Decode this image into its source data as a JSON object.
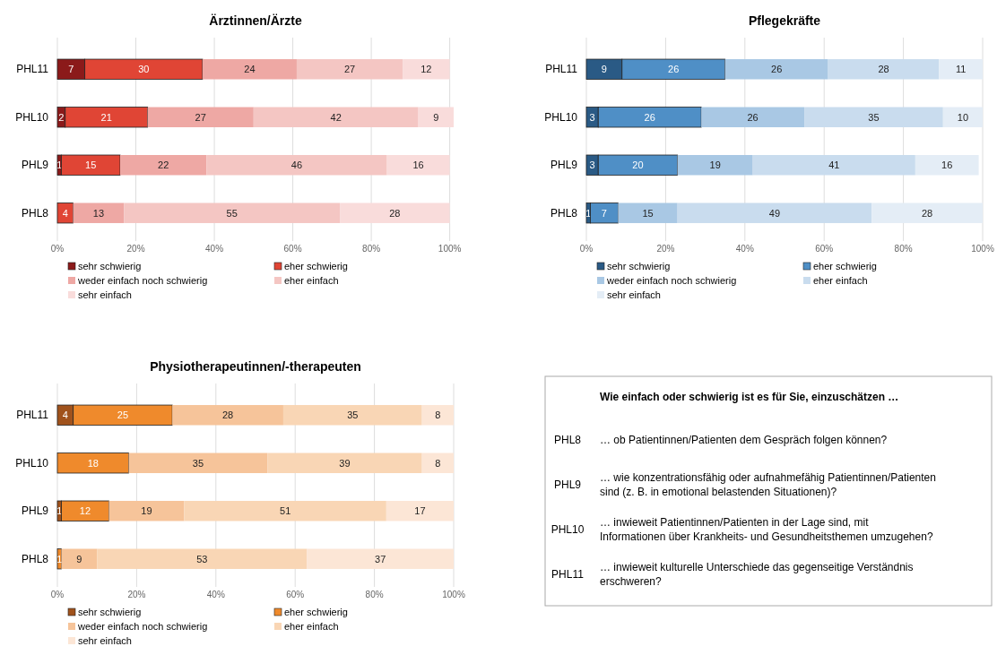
{
  "chart_data": [
    {
      "type": "bar",
      "title": "Ärztinnen/Ärzte",
      "orientation": "horizontal",
      "stacked": true,
      "categories": [
        "PHL11",
        "PHL10",
        "PHL9",
        "PHL8"
      ],
      "xlim": [
        0,
        101
      ],
      "xticks": [
        {
          "value": 0,
          "label": "0%"
        },
        {
          "value": 20,
          "label": "20%"
        },
        {
          "value": 40,
          "label": "40%"
        },
        {
          "value": 60,
          "label": "60%"
        },
        {
          "value": 80,
          "label": "80%"
        },
        {
          "value": 100,
          "label": "100%"
        }
      ],
      "grid": "x",
      "legend": "bottom",
      "series": [
        {
          "name": "sehr schwierig",
          "color": "#8b1a1a",
          "values": [
            7,
            2,
            1,
            0
          ],
          "value_labels": [
            "7",
            "2",
            "1",
            null
          ]
        },
        {
          "name": "eher schwierig",
          "color": "#e04535",
          "values": [
            30,
            21,
            15,
            4
          ],
          "value_labels": [
            "30",
            "21",
            "15",
            "4"
          ]
        },
        {
          "name": "weder einfach noch schwierig",
          "color": "#eea8a4",
          "values": [
            24,
            27,
            22,
            13
          ],
          "value_labels": [
            "24",
            "27",
            "22",
            "13"
          ]
        },
        {
          "name": "eher einfach",
          "color": "#f4c6c3",
          "values": [
            27,
            42,
            46,
            55
          ],
          "value_labels": [
            "27",
            "42",
            "46",
            "55"
          ]
        },
        {
          "name": "sehr einfach",
          "color": "#f9dcdb",
          "values": [
            12,
            9,
            16,
            28
          ],
          "value_labels": [
            "12",
            "9",
            "16",
            "28"
          ]
        }
      ]
    },
    {
      "type": "bar",
      "title": "Pflegekräfte",
      "orientation": "horizontal",
      "stacked": true,
      "categories": [
        "PHL11",
        "PHL10",
        "PHL9",
        "PHL8"
      ],
      "xlim": [
        0,
        100
      ],
      "xticks": [
        {
          "value": 0,
          "label": "0%"
        },
        {
          "value": 20,
          "label": "20%"
        },
        {
          "value": 40,
          "label": "40%"
        },
        {
          "value": 60,
          "label": "60%"
        },
        {
          "value": 80,
          "label": "80%"
        },
        {
          "value": 100,
          "label": "100%"
        }
      ],
      "grid": "x",
      "legend": "bottom",
      "series": [
        {
          "name": "sehr schwierig",
          "color": "#2a5a85",
          "values": [
            9,
            3,
            3,
            1
          ],
          "value_labels": [
            "9",
            "3",
            "3",
            "1"
          ]
        },
        {
          "name": "eher schwierig",
          "color": "#4f8fc6",
          "values": [
            26,
            26,
            20,
            7
          ],
          "value_labels": [
            "26",
            "26",
            "20",
            "7"
          ]
        },
        {
          "name": "weder einfach noch schwierig",
          "color": "#a9c8e4",
          "values": [
            26,
            26,
            19,
            15
          ],
          "value_labels": [
            "26",
            "26",
            "19",
            "15"
          ]
        },
        {
          "name": "eher einfach",
          "color": "#c9dcee",
          "values": [
            28,
            35,
            41,
            49
          ],
          "value_labels": [
            "28",
            "35",
            "41",
            "49"
          ]
        },
        {
          "name": "sehr einfach",
          "color": "#e4edf6",
          "values": [
            11,
            10,
            16,
            28
          ],
          "value_labels": [
            "11",
            "10",
            "16",
            "28"
          ]
        }
      ]
    },
    {
      "type": "bar",
      "title": "Physiotherapeutinnen/-therapeuten",
      "orientation": "horizontal",
      "stacked": true,
      "categories": [
        "PHL11",
        "PHL10",
        "PHL9",
        "PHL8"
      ],
      "xlim": [
        0,
        100
      ],
      "xticks": [
        {
          "value": 0,
          "label": "0%"
        },
        {
          "value": 20,
          "label": "20%"
        },
        {
          "value": 40,
          "label": "40%"
        },
        {
          "value": 60,
          "label": "60%"
        },
        {
          "value": 80,
          "label": "80%"
        },
        {
          "value": 100,
          "label": "100%"
        }
      ],
      "grid": "x",
      "legend": "bottom",
      "series": [
        {
          "name": "sehr schwierig",
          "color": "#a0521c",
          "values": [
            4,
            0,
            1,
            0
          ],
          "value_labels": [
            "4",
            null,
            "1",
            null
          ]
        },
        {
          "name": "eher schwierig",
          "color": "#ef8a2c",
          "values": [
            25,
            18,
            12,
            1
          ],
          "value_labels": [
            "25",
            "18",
            "12",
            "1"
          ]
        },
        {
          "name": "weder einfach noch schwierig",
          "color": "#f6c49a",
          "values": [
            28,
            35,
            19,
            9
          ],
          "value_labels": [
            "28",
            "35",
            "19",
            "9"
          ]
        },
        {
          "name": "eher einfach",
          "color": "#f9d6b5",
          "values": [
            35,
            39,
            51,
            53
          ],
          "value_labels": [
            "35",
            "39",
            "51",
            "53"
          ]
        },
        {
          "name": "sehr einfach",
          "color": "#fce6d6",
          "values": [
            8,
            8,
            17,
            37
          ],
          "value_labels": [
            "8",
            "8",
            "17",
            "37"
          ]
        }
      ]
    },
    {
      "type": "other",
      "title": "Wie einfach oder schwierig ist es für Sie, einzuschätzen …",
      "annotations": [
        "PHL8",
        "… ob Patientinnen/Patienten dem Gespräch folgen können?",
        "PHL9",
        "… wie konzentrationsfähig oder aufnahmefähig Patientinnen/Patienten sind (z. B. in emotional belastenden Situationen)?",
        "PHL10",
        "… inwieweit Patientinnen/Patienten in der Lage sind, mit Informationen über Krankheits- und Gesundheitsthemen umzugehen?",
        "PHL11",
        "… inwieweit kulturelle Unterschiede das gegenseitige Verständnis erschweren?"
      ]
    }
  ]
}
